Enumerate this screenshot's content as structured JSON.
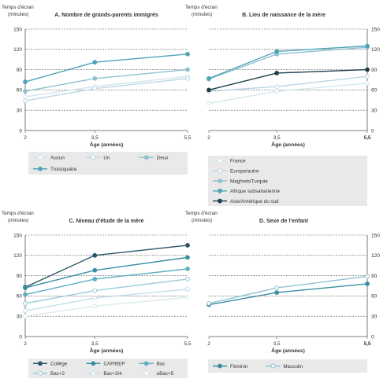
{
  "chart_data": [
    {
      "type": "line",
      "title": "A. Nombre de grands-parents immigrés",
      "ylabel": "Temps d'écran\n(minutes)",
      "xlabel": "Âge (années)",
      "x": [
        2,
        3.5,
        5.5
      ],
      "x_ticks": [
        "2",
        "3,5",
        "5,5"
      ],
      "y_ticks": [
        0,
        30,
        60,
        90,
        120,
        150
      ],
      "ylim": [
        0,
        150
      ],
      "grid": true,
      "legend_placement": "bottom",
      "series": [
        {
          "name": "Aucun",
          "values": [
            50,
            65,
            80
          ],
          "color": "#d4e6ee",
          "marker_fill": "#ffffff"
        },
        {
          "name": "Un",
          "values": [
            44,
            62,
            77
          ],
          "color": "#bcd7e2",
          "marker_fill": "#ffffff"
        },
        {
          "name": "Deux",
          "values": [
            58,
            77,
            90
          ],
          "color": "#8fc1d1",
          "marker_fill": "#8fc1d1"
        },
        {
          "name": "Trois/quatre",
          "values": [
            72,
            101,
            113
          ],
          "color": "#4fa3b8",
          "marker_fill": "#4fa3b8"
        }
      ]
    },
    {
      "type": "line",
      "title": "B. Lieu de naissance de la mère",
      "ylabel": "Temps d'écran\n(minutes)",
      "xlabel": "Âge (années)",
      "x": [
        2,
        3.5,
        5.5
      ],
      "x_ticks": [
        "2",
        "3,5",
        "5,5"
      ],
      "y_ticks": [
        0,
        30,
        60,
        90,
        120,
        150
      ],
      "ylim": [
        0,
        150
      ],
      "grid": true,
      "legend_placement": "bottom",
      "series": [
        {
          "name": "France",
          "values": [
            40,
            58,
            70
          ],
          "color": "#d4e6ee",
          "marker_fill": "#ffffff"
        },
        {
          "name": "Europe/autre",
          "values": [
            58,
            65,
            80
          ],
          "color": "#bcd7e2",
          "marker_fill": "#ffffff"
        },
        {
          "name": "Maghreb/Turquie",
          "values": [
            76,
            113,
            123
          ],
          "color": "#8fc1d1",
          "marker_fill": "#8fc1d1"
        },
        {
          "name": "Afrique subsaharienne",
          "values": [
            77,
            117,
            125
          ],
          "color": "#4fa3b8",
          "marker_fill": "#4fa3b8"
        },
        {
          "name": "Asie/Amérique du sud",
          "values": [
            60,
            85,
            90
          ],
          "color": "#1f3f4d",
          "marker_fill": "#1f3f4d"
        }
      ]
    },
    {
      "type": "line",
      "title": "C. Niveau d'étude de la mère",
      "ylabel": "Temps d'écran\n(minutes)",
      "xlabel": "Âge (années)",
      "x": [
        2,
        3.5,
        5.5
      ],
      "x_ticks": [
        "2",
        "3,5",
        "5,5"
      ],
      "y_ticks": [
        0,
        30,
        60,
        90,
        120,
        150
      ],
      "ylim": [
        0,
        150
      ],
      "grid": true,
      "legend_placement": "bottom",
      "series": [
        {
          "name": "Collège",
          "values": [
            73,
            120,
            135
          ],
          "color": "#2a5566",
          "marker_fill": "#2a5566"
        },
        {
          "name": "CAP/BEP",
          "values": [
            72,
            98,
            117
          ],
          "color": "#3a8ea4",
          "marker_fill": "#3a8ea4"
        },
        {
          "name": "Bac",
          "values": [
            62,
            85,
            100
          ],
          "color": "#5cb0c3",
          "marker_fill": "#5cb0c3"
        },
        {
          "name": "Bac+2",
          "values": [
            49,
            68,
            85
          ],
          "color": "#9ccbd8",
          "marker_fill": "#ffffff"
        },
        {
          "name": "Bac+3/4",
          "values": [
            38,
            57,
            70
          ],
          "color": "#c3dee8",
          "marker_fill": "#ffffff"
        },
        {
          "name": "≥Bac+5",
          "values": [
            30,
            45,
            58
          ],
          "color": "#dceaf0",
          "marker_fill": "#ffffff"
        }
      ]
    },
    {
      "type": "line",
      "title": "D. Sexe de l'enfant",
      "ylabel": "Temps d'écran\n(minutes)",
      "xlabel": "Âge (années)",
      "x": [
        2,
        3.5,
        5.5
      ],
      "x_ticks": [
        "2",
        "3,5",
        "5,5"
      ],
      "y_ticks": [
        0,
        30,
        60,
        90,
        120,
        150
      ],
      "ylim": [
        0,
        150
      ],
      "grid": true,
      "legend_placement": "bottom",
      "series": [
        {
          "name": "Féminin",
          "values": [
            47,
            65,
            78
          ],
          "color": "#3a8ea4",
          "marker_fill": "#3a8ea4"
        },
        {
          "name": "Masculin",
          "values": [
            49,
            72,
            89
          ],
          "color": "#8fc1d1",
          "marker_fill": "#ffffff"
        }
      ]
    }
  ]
}
